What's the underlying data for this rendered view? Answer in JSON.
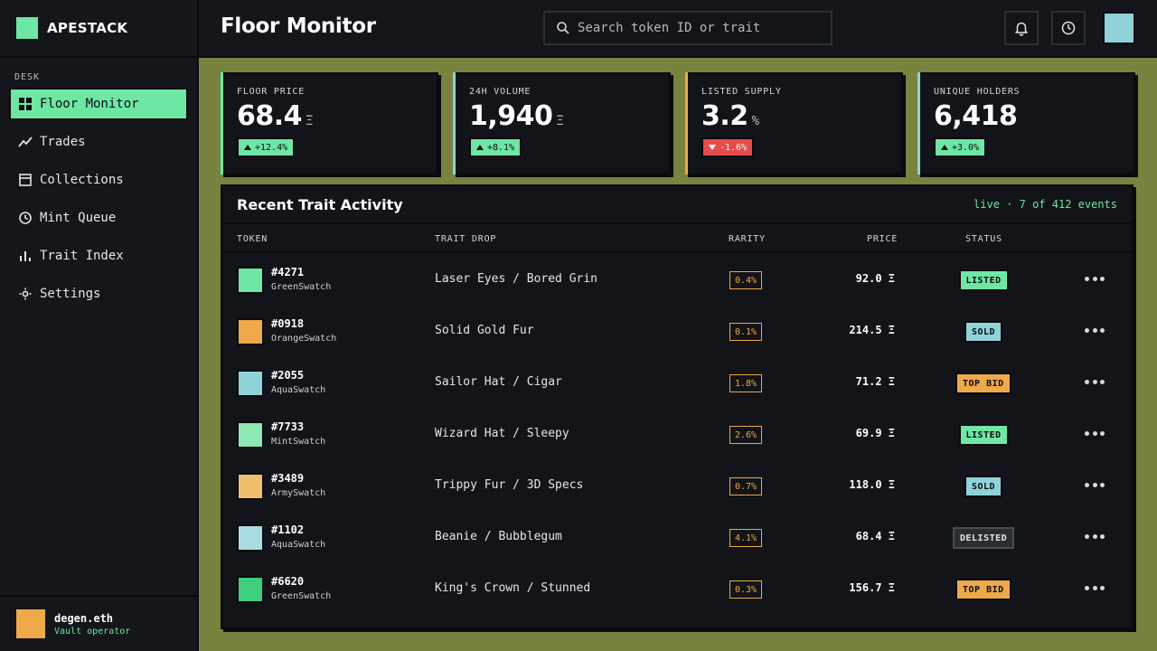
{
  "brand": {
    "name": "APESTACK",
    "color": "#6ee7a5"
  },
  "sidebar": {
    "section": "DESK",
    "items": [
      {
        "label": "Floor Monitor",
        "icon": "grid-icon",
        "active": true
      },
      {
        "label": "Trades",
        "icon": "trend-icon"
      },
      {
        "label": "Collections",
        "icon": "layout-icon"
      },
      {
        "label": "Mint Queue",
        "icon": "clock-icon"
      },
      {
        "label": "Trait Index",
        "icon": "bars-icon"
      },
      {
        "label": "Settings",
        "icon": "gear-icon"
      }
    ],
    "user": {
      "name": "degen.eth",
      "role": "Vault operator",
      "avatar_color": "#eda94a"
    }
  },
  "header": {
    "title": "Floor Monitor",
    "search_placeholder": "Search token ID or trait",
    "profile_color": "#8fd3d9"
  },
  "stats": [
    {
      "label": "FLOOR PRICE",
      "value": "68.4",
      "unit": "Ξ",
      "delta": "+12.4%",
      "direction": "up",
      "accent": "#6ee7a5"
    },
    {
      "label": "24H VOLUME",
      "value": "1,940",
      "unit": "Ξ",
      "delta": "+8.1%",
      "direction": "up",
      "accent": "#8fd3d9"
    },
    {
      "label": "LISTED SUPPLY",
      "value": "3.2",
      "unit": "%",
      "delta": "-1.6%",
      "direction": "down",
      "accent": "#eda94a"
    },
    {
      "label": "UNIQUE HOLDERS",
      "value": "6,418",
      "unit": "",
      "delta": "+3.0%",
      "direction": "up",
      "accent": "#8fd3d9"
    }
  ],
  "activity": {
    "title": "Recent Trait Activity",
    "meta": "live · 7 of 412 events",
    "columns": {
      "token": "TOKEN",
      "trait": "TRAIT DROP",
      "rarity": "RARITY",
      "price": "PRICE",
      "status": "STATUS"
    },
    "rows": [
      {
        "id": "#4271",
        "swatch": "GreenSwatch",
        "color": "#6ee7a5",
        "trait": "Laser Eyes / Bored Grin",
        "rarity": "0.4%",
        "price": "92.0 Ξ",
        "status": "LISTED",
        "status_kind": "listed"
      },
      {
        "id": "#0918",
        "swatch": "OrangeSwatch",
        "color": "#eda94a",
        "trait": "Solid Gold Fur",
        "rarity": "0.1%",
        "price": "214.5 Ξ",
        "status": "SOLD",
        "status_kind": "sold"
      },
      {
        "id": "#2055",
        "swatch": "AquaSwatch",
        "color": "#8fd3d9",
        "trait": "Sailor Hat / Cigar",
        "rarity": "1.8%",
        "price": "71.2 Ξ",
        "status": "TOP BID",
        "status_kind": "topbid"
      },
      {
        "id": "#7733",
        "swatch": "MintSwatch",
        "color": "#8ee8b4",
        "trait": "Wizard Hat / Sleepy",
        "rarity": "2.6%",
        "price": "69.9 Ξ",
        "status": "LISTED",
        "status_kind": "listed"
      },
      {
        "id": "#3489",
        "swatch": "ArmySwatch",
        "color": "#f0bf6e",
        "trait": "Trippy Fur / 3D Specs",
        "rarity": "0.7%",
        "price": "118.0 Ξ",
        "status": "SOLD",
        "status_kind": "sold"
      },
      {
        "id": "#1102",
        "swatch": "AquaSwatch",
        "color": "#a9dde2",
        "trait": "Beanie / Bubblegum",
        "rarity": "4.1%",
        "price": "68.4 Ξ",
        "status": "DELISTED",
        "status_kind": "delisted"
      },
      {
        "id": "#6620",
        "swatch": "GreenSwatch",
        "color": "#3ecf7d",
        "trait": "King's Crown / Stunned",
        "rarity": "0.3%",
        "price": "156.7 Ξ",
        "status": "TOP BID",
        "status_kind": "topbid"
      }
    ]
  }
}
